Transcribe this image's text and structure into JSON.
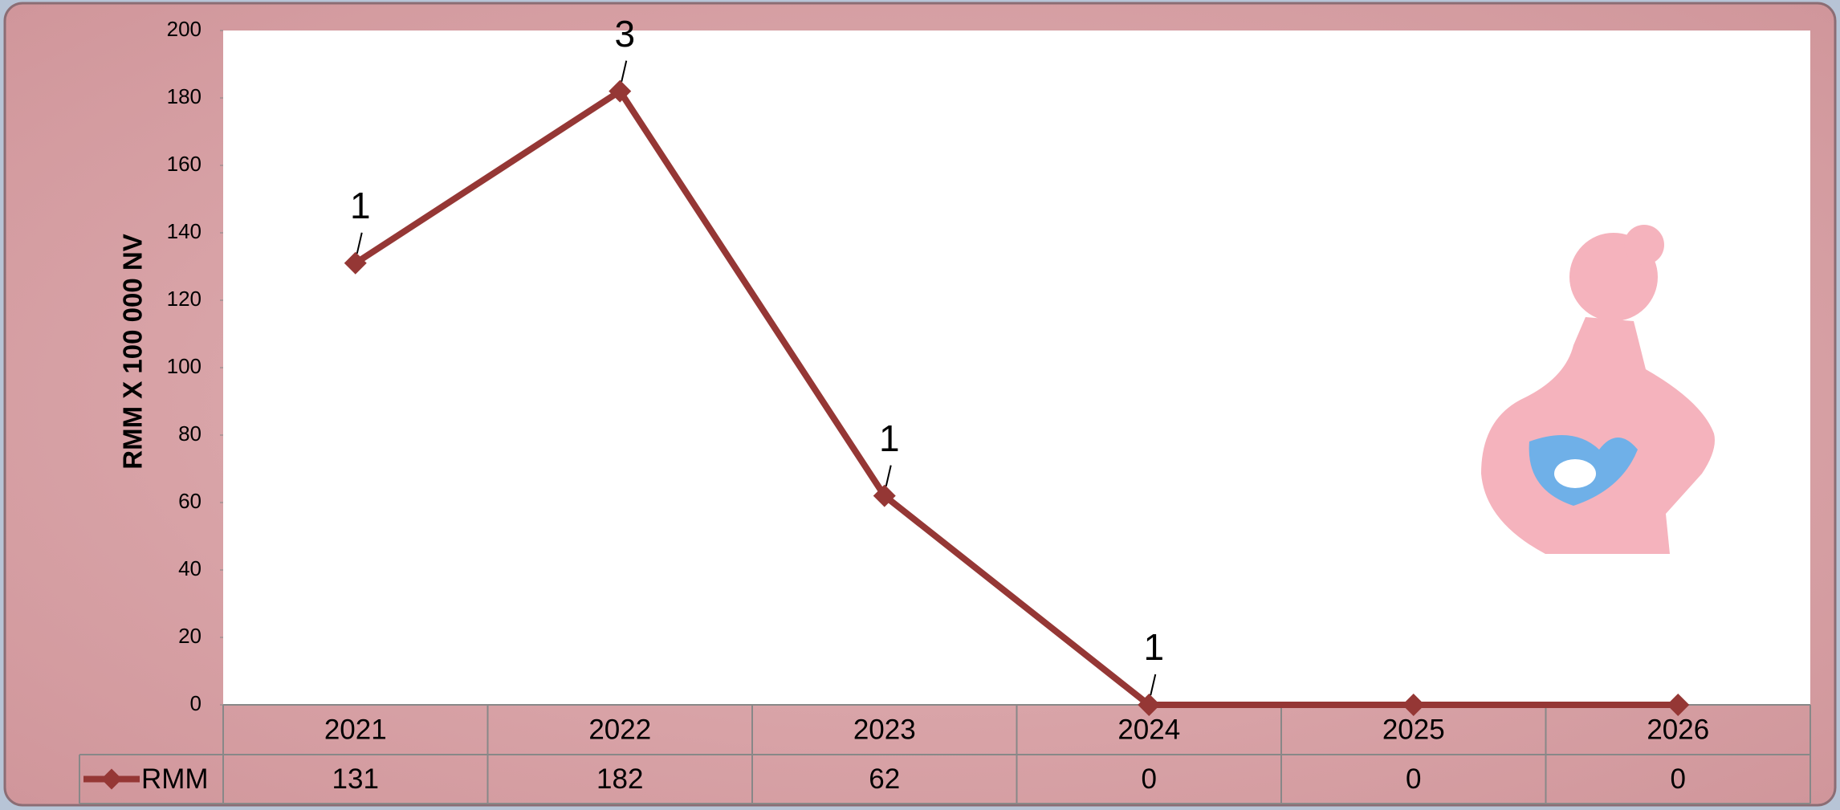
{
  "chart_data": {
    "type": "line",
    "y_axis_label": "RMM X 100 000 NV",
    "categories": [
      "2021",
      "2022",
      "2023",
      "2024",
      "2025",
      "2026"
    ],
    "series": [
      {
        "name": "RMM",
        "color": "#953735",
        "values": [
          131,
          182,
          62,
          0,
          0,
          0
        ]
      }
    ],
    "point_labels": [
      "1",
      "3",
      "1",
      "1",
      null,
      null
    ],
    "ylim": [
      0,
      200
    ],
    "yticks": [
      0,
      20,
      40,
      60,
      80,
      100,
      120,
      140,
      160,
      180,
      200
    ],
    "data_table": true
  }
}
